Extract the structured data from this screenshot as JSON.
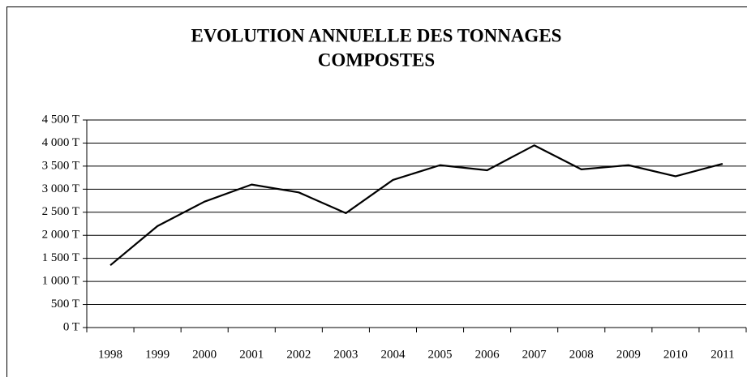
{
  "chart_data": {
    "type": "line",
    "title": [
      "EVOLUTION ANNUELLE DES TONNAGES",
      "COMPOSTES"
    ],
    "categories": [
      "1998",
      "1999",
      "2000",
      "2001",
      "2002",
      "2003",
      "2004",
      "2005",
      "2006",
      "2007",
      "2008",
      "2009",
      "2010",
      "2011"
    ],
    "series": [
      {
        "color": "#000000",
        "values": [
          1350,
          2200,
          2730,
          3100,
          2930,
          2480,
          3200,
          3520,
          3410,
          3950,
          3430,
          3520,
          3280,
          3550
        ]
      }
    ],
    "ylim": [
      0,
      4500
    ],
    "yticks": [
      {
        "value": 0,
        "label": "0 T"
      },
      {
        "value": 500,
        "label": "500 T"
      },
      {
        "value": 1000,
        "label": "1 000 T"
      },
      {
        "value": 1500,
        "label": "1 500 T"
      },
      {
        "value": 2000,
        "label": "2 000 T"
      },
      {
        "value": 2500,
        "label": "2 500 T"
      },
      {
        "value": 3000,
        "label": "3 000 T"
      },
      {
        "value": 3500,
        "label": "3 500 T"
      },
      {
        "value": 4000,
        "label": "4 000 T"
      },
      {
        "value": 4500,
        "label": "4 500 T"
      }
    ],
    "grid": true
  }
}
